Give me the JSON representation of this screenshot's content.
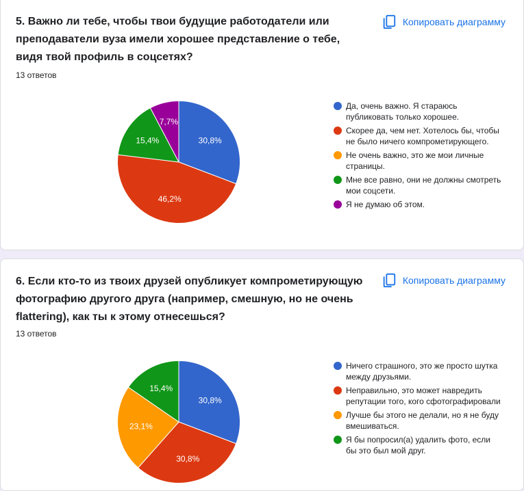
{
  "copy_label": "Копировать диаграмму",
  "colors": {
    "blue": "#3366cc",
    "red": "#dc3912",
    "orange": "#ff9900",
    "green": "#109618",
    "purple": "#990099",
    "accent": "#1a73e8",
    "background": "#f0ebf8"
  },
  "chart_data": [
    {
      "type": "pie",
      "title": "5. Важно ли тебе, чтобы твои будущие работодатели или преподаватели вуза имели хорошее представление о тебе, видя твой профиль в соцсетях?",
      "subtitle": "13 ответов",
      "legend_position": "right",
      "slices": [
        {
          "label": "Да, очень важно. Я стараюсь публиковать только хорошее.",
          "value": 30.8,
          "value_label": "30,8%",
          "color": "#3366cc"
        },
        {
          "label": "Скорее да, чем нет. Хотелось бы, чтобы не было ничего компрометирующего.",
          "value": 46.2,
          "value_label": "46,2%",
          "color": "#dc3912"
        },
        {
          "label": "Не очень важно, это же мои личные страницы.",
          "value": 0,
          "value_label": "",
          "color": "#ff9900"
        },
        {
          "label": "Мне все равно, они не должны смотреть мои соцсети.",
          "value": 15.4,
          "value_label": "15,4%",
          "color": "#109618"
        },
        {
          "label": "Я не думаю об этом.",
          "value": 7.7,
          "value_label": "7,7%",
          "color": "#990099"
        }
      ]
    },
    {
      "type": "pie",
      "title": "6. Если кто-то из твоих друзей опубликует компрометирующую фотографию другого друга (например, смешную, но не очень flattering), как ты к этому отнесешься?",
      "subtitle": "13 ответов",
      "legend_position": "right",
      "slices": [
        {
          "label": "Ничего страшного, это же просто шутка между друзьями.",
          "value": 30.8,
          "value_label": "30,8%",
          "color": "#3366cc"
        },
        {
          "label": "Неправильно, это может навредить репутации того, кого сфотографировали",
          "value": 30.8,
          "value_label": "30,8%",
          "color": "#dc3912"
        },
        {
          "label": "Лучше бы этого не делали, но я не буду вмешиваться.",
          "value": 23.1,
          "value_label": "23,1%",
          "color": "#ff9900"
        },
        {
          "label": "Я бы попросил(а) удалить фото, если бы это был мой друг.",
          "value": 15.4,
          "value_label": "15,4%",
          "color": "#109618"
        }
      ]
    }
  ]
}
